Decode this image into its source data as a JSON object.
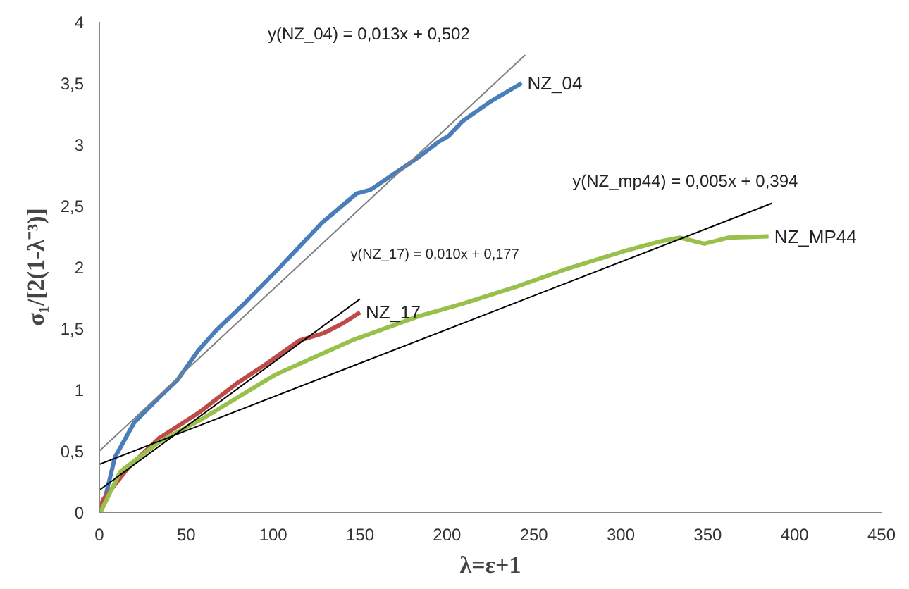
{
  "chart_data": {
    "type": "line",
    "xlabel": "λ=ε+1",
    "ylabel": "σ₁/[2(1-λ⁻³)]",
    "xlim": [
      0,
      450
    ],
    "xticks": [
      0,
      50,
      100,
      150,
      200,
      250,
      300,
      350,
      400,
      450
    ],
    "ylim": [
      0,
      4
    ],
    "yticks": [
      0,
      {
        "value": 0.5,
        "label": "0,5"
      },
      1,
      {
        "value": 1.5,
        "label": "1,5"
      },
      2,
      {
        "value": 2.5,
        "label": "2,5"
      },
      3,
      {
        "value": 3.5,
        "label": "3,5"
      },
      4
    ],
    "grid": false,
    "marker": "none",
    "line_style": "solid",
    "series": [
      {
        "name": "NZ_04",
        "color": "#4a7ebb",
        "x": [
          0,
          3,
          9,
          20,
          34,
          45,
          57,
          67,
          84,
          104,
          128,
          148,
          156,
          184,
          195,
          201,
          209,
          225,
          243
        ],
        "values": [
          0,
          0.1,
          0.45,
          0.73,
          0.93,
          1.08,
          1.32,
          1.48,
          1.71,
          2.0,
          2.36,
          2.6,
          2.63,
          2.9,
          3.02,
          3.07,
          3.19,
          3.35,
          3.5
        ]
      },
      {
        "name": "NZ_17",
        "color": "#be4b48",
        "x": [
          0,
          2,
          17,
          34,
          57,
          79,
          95,
          115,
          129,
          140,
          150
        ],
        "values": [
          0,
          0.1,
          0.37,
          0.6,
          0.81,
          1.05,
          1.2,
          1.4,
          1.46,
          1.54,
          1.63
        ]
      },
      {
        "name": "NZ_MP44",
        "color": "#98c04a",
        "x": [
          0,
          1,
          12,
          34,
          59,
          101,
          145,
          184,
          209,
          240,
          268,
          302,
          323,
          334,
          348,
          362,
          385
        ],
        "values": [
          0,
          0.01,
          0.33,
          0.57,
          0.76,
          1.12,
          1.4,
          1.6,
          1.7,
          1.84,
          1.98,
          2.13,
          2.21,
          2.24,
          2.19,
          2.24,
          2.25
        ]
      },
      {
        "color": "#808080",
        "x": [
          0,
          245
        ],
        "values": [
          0.5,
          3.73
        ]
      },
      {
        "color": "#000000",
        "x": [
          0,
          150
        ],
        "values": [
          0.18,
          1.74
        ]
      },
      {
        "color": "#000000",
        "x": [
          0,
          387
        ],
        "values": [
          0.39,
          2.52
        ]
      }
    ],
    "annotations": [
      "y(NZ_04) = 0,013x + 0,502",
      "y(NZ_17) = 0,010x + 0,177",
      "y(NZ_mp44) = 0,005x + 0,394"
    ]
  }
}
